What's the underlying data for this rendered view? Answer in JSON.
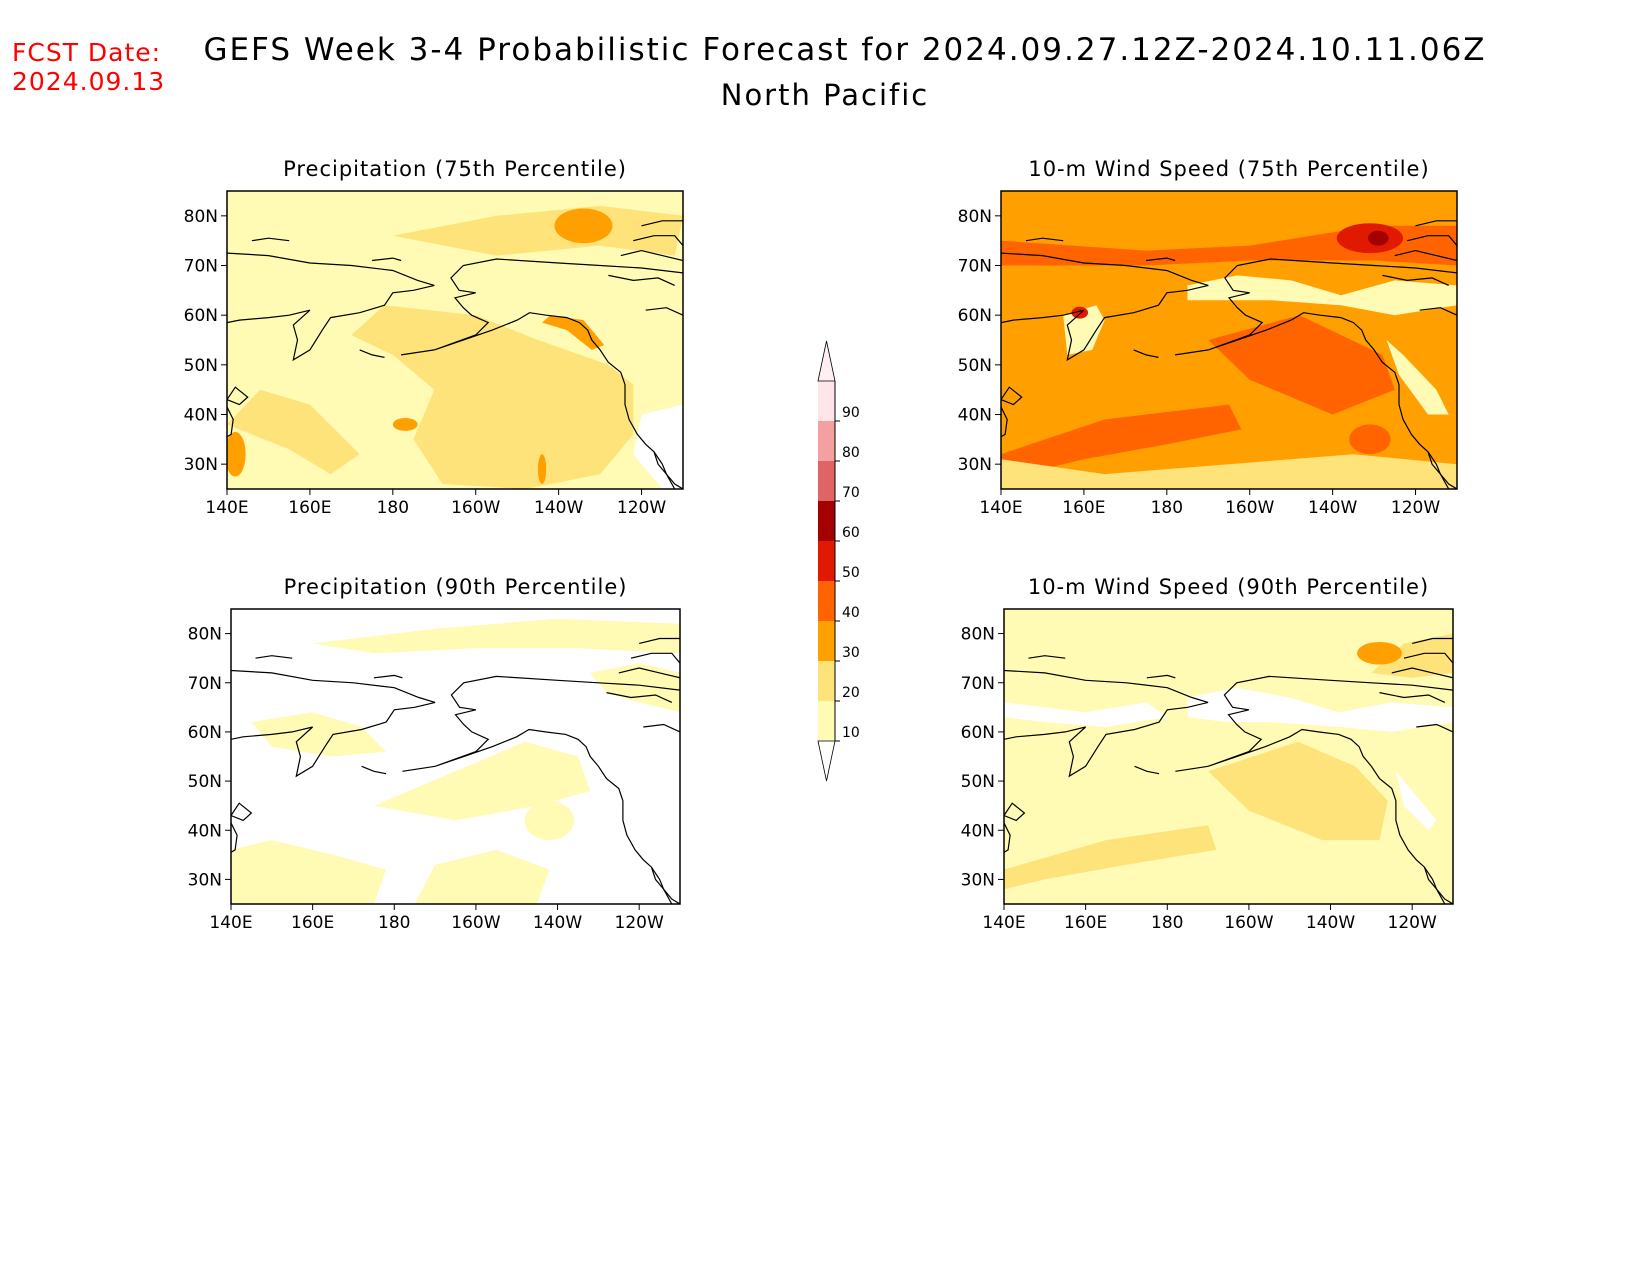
{
  "header": {
    "fcst_label": "FCST Date:",
    "fcst_date": "2024.09.13",
    "title": "GEFS Week 3-4 Probabilistic Forecast for 2024.09.27.12Z-2024.10.11.06Z",
    "subtitle": "North Pacific"
  },
  "map_axes": {
    "lat_labels": [
      "80N",
      "70N",
      "60N",
      "50N",
      "40N",
      "30N"
    ],
    "lon_labels": [
      "140E",
      "160E",
      "180",
      "160W",
      "140W",
      "120W"
    ]
  },
  "panels": [
    {
      "id": "precip75",
      "title": "Precipitation (75th Percentile)",
      "base_level": "10-20",
      "patches": [
        {
          "level": "20-30",
          "region": "eastern Pacific / Gulf of Alaska"
        },
        {
          "level": "20-30",
          "region": "central Arctic"
        },
        {
          "level": "30-40",
          "region": "Arctic near 75N 140W"
        },
        {
          "level": "30-40",
          "region": "Alaska panhandle coast"
        },
        {
          "level": "30-40",
          "region": "Japan coast"
        },
        {
          "level": "0-10",
          "region": "California / Mexico coast"
        }
      ]
    },
    {
      "id": "wind75",
      "title": "10-m Wind Speed (75th Percentile)",
      "base_level": "30-40",
      "patches": [
        {
          "level": "40-50",
          "region": "Arctic band 70-80N"
        },
        {
          "level": "40-50",
          "region": "western Pacific 35-42N"
        },
        {
          "level": "40-50",
          "region": "Gulf of Alaska"
        },
        {
          "level": "50-60",
          "region": "Arctic near 75N 135W"
        },
        {
          "level": "60-70",
          "region": "Arctic near 75N 135W"
        },
        {
          "level": "10-20",
          "region": "Alaska and Siberia land"
        },
        {
          "level": "20-30",
          "region": "subtropics 25-30N"
        }
      ]
    },
    {
      "id": "precip90",
      "title": "Precipitation (90th Percentile)",
      "base_level": "0-10",
      "patches": [
        {
          "level": "10-20",
          "region": "scattered patches over ocean and Arctic"
        }
      ]
    },
    {
      "id": "wind90",
      "title": "10-m Wind Speed (90th Percentile)",
      "base_level": "10-20",
      "patches": [
        {
          "level": "20-30",
          "region": "Gulf of Alaska"
        },
        {
          "level": "20-30",
          "region": "western Pacific 35-42N"
        },
        {
          "level": "30-40",
          "region": "Arctic near 75N 135W"
        },
        {
          "level": "0-10",
          "region": "Alaska and Siberia land"
        }
      ]
    }
  ],
  "legend": {
    "labels": [
      "10",
      "20",
      "30",
      "40",
      "50",
      "60",
      "70",
      "80",
      "90"
    ],
    "colors": [
      "#fffab4",
      "#fde37a",
      "#ffa000",
      "#ff6400",
      "#e11900",
      "#a50000",
      "#e06464",
      "#f5a0a0",
      "#ffe4ea"
    ]
  },
  "colors": {
    "white": "#ffffff",
    "l1": "#fffab4",
    "l2": "#fde37a",
    "l3": "#ffa000",
    "l4": "#ff6400",
    "l5": "#e11900",
    "l6": "#a50000"
  }
}
